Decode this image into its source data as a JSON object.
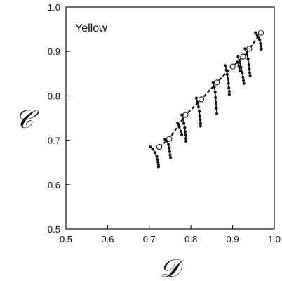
{
  "chart_data": {
    "type": "scatter",
    "annotation": "Yellow",
    "xlabel": "𝒟",
    "ylabel": "𝒞",
    "xlim": [
      0.5,
      1.0
    ],
    "ylim": [
      0.5,
      1.0
    ],
    "xticks": [
      "0.5",
      "0.6",
      "0.7",
      "0.8",
      "0.9",
      "1.0"
    ],
    "yticks": [
      "0.5",
      "0.6",
      "0.7",
      "0.8",
      "0.9",
      "1.0"
    ],
    "grid": false,
    "series": [
      {
        "style": "open-circle-dashed",
        "x": [
          0.724,
          0.748,
          0.787,
          0.825,
          0.862,
          0.9,
          0.925,
          0.94,
          0.968
        ],
        "y": [
          0.685,
          0.703,
          0.757,
          0.792,
          0.83,
          0.866,
          0.888,
          0.906,
          0.942
        ]
      }
    ],
    "trajectories": [
      {
        "x": [
          0.702,
          0.708,
          0.714,
          0.718,
          0.72,
          0.721,
          0.722,
          0.722
        ],
        "y": [
          0.685,
          0.68,
          0.672,
          0.664,
          0.656,
          0.65,
          0.645,
          0.64
        ]
      },
      {
        "x": [
          0.738,
          0.743,
          0.746,
          0.748,
          0.749,
          0.75,
          0.751
        ],
        "y": [
          0.702,
          0.698,
          0.69,
          0.682,
          0.674,
          0.667,
          0.661
        ]
      },
      {
        "x": [
          0.778,
          0.781,
          0.783,
          0.785,
          0.786,
          0.787,
          0.788,
          0.788
        ],
        "y": [
          0.757,
          0.748,
          0.738,
          0.728,
          0.719,
          0.712,
          0.704,
          0.698
        ]
      },
      {
        "x": [
          0.768,
          0.772,
          0.776,
          0.778
        ],
        "y": [
          0.738,
          0.73,
          0.72,
          0.712
        ]
      },
      {
        "x": [
          0.813,
          0.816,
          0.818,
          0.82,
          0.821,
          0.822,
          0.823,
          0.823
        ],
        "y": [
          0.795,
          0.785,
          0.775,
          0.765,
          0.755,
          0.746,
          0.738,
          0.732
        ]
      },
      {
        "x": [
          0.853,
          0.856,
          0.858,
          0.859,
          0.86,
          0.861,
          0.862
        ],
        "y": [
          0.83,
          0.82,
          0.808,
          0.796,
          0.784,
          0.772,
          0.76
        ]
      },
      {
        "x": [
          0.882,
          0.885,
          0.887,
          0.889,
          0.89,
          0.891,
          0.892,
          0.892
        ],
        "y": [
          0.868,
          0.858,
          0.848,
          0.838,
          0.828,
          0.818,
          0.81,
          0.803
        ]
      },
      {
        "x": [
          0.913,
          0.917,
          0.92,
          0.923,
          0.925,
          0.926,
          0.927
        ],
        "y": [
          0.888,
          0.876,
          0.864,
          0.852,
          0.842,
          0.834,
          0.828
        ]
      },
      {
        "x": [
          0.912,
          0.915,
          0.918
        ],
        "y": [
          0.876,
          0.866,
          0.856
        ]
      },
      {
        "x": [
          0.93,
          0.934,
          0.937,
          0.939,
          0.94,
          0.941,
          0.942
        ],
        "y": [
          0.906,
          0.895,
          0.883,
          0.87,
          0.86,
          0.852,
          0.845
        ]
      },
      {
        "x": [
          0.955,
          0.959,
          0.962,
          0.965,
          0.967,
          0.968,
          0.969
        ],
        "y": [
          0.942,
          0.937,
          0.932,
          0.926,
          0.918,
          0.912,
          0.905
        ]
      }
    ]
  }
}
